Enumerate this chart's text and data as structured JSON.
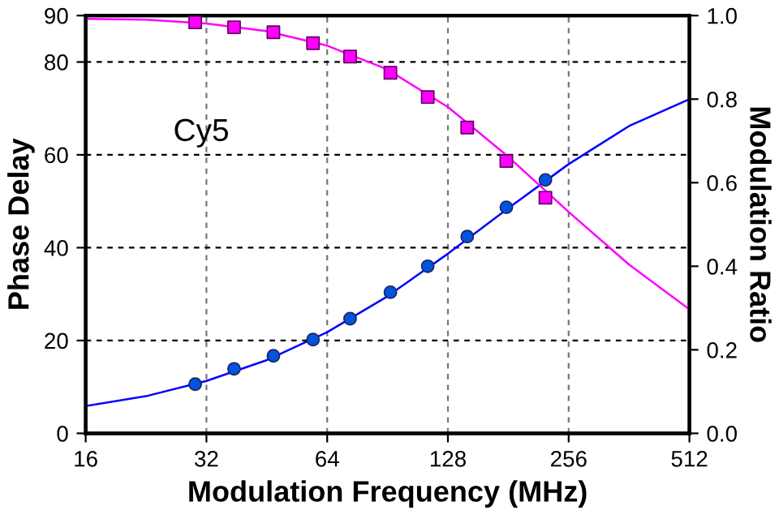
{
  "chart_data": {
    "type": "scatter",
    "xlabel": "Modulation Frequency (MHz)",
    "ylabel": "Phase Delay",
    "y2label": "Modulation Ratio",
    "annotations": [
      "Cy5"
    ],
    "log": "x",
    "grid": true,
    "xlim": [
      16,
      512
    ],
    "xticks": [
      16,
      32,
      64,
      128,
      256,
      512
    ],
    "ylim": [
      0,
      90
    ],
    "yticks": [
      0,
      20,
      40,
      60,
      80,
      90
    ],
    "y2lim": [
      0,
      1
    ],
    "y2ticks": [
      {
        "value": 0,
        "label": "0.0"
      },
      {
        "value": 0.2,
        "label": "0.2"
      },
      {
        "value": 0.4,
        "label": "0.4"
      },
      {
        "value": 0.6,
        "label": "0.6"
      },
      {
        "value": 0.8,
        "label": "0.8"
      },
      {
        "value": 1,
        "label": "1.0"
      }
    ],
    "series": [
      {
        "type": "line",
        "color": "#0000ff",
        "marker": "none",
        "line_style": "solid",
        "x": [
          16,
          22.6,
          32,
          45,
          64,
          90,
          128,
          181,
          256,
          362,
          512
        ],
        "values": [
          5.9,
          8.0,
          11.3,
          15.7,
          21.8,
          29.4,
          38.7,
          48.5,
          58.0,
          66.2,
          72.0
        ]
      },
      {
        "type": "line",
        "axis": "y2",
        "color": "#ff00ff",
        "marker": "none",
        "line_style": "solid",
        "x": [
          16,
          22.6,
          32,
          45,
          64,
          90,
          128,
          181,
          256,
          362,
          512
        ],
        "values": [
          0.992,
          0.99,
          0.981,
          0.963,
          0.928,
          0.872,
          0.781,
          0.662,
          0.53,
          0.404,
          0.297
        ]
      },
      {
        "color": "#0055dd",
        "marker": "circle",
        "x": [
          30,
          37.5,
          47,
          59,
          73,
          92,
          114,
          143,
          179,
          224
        ],
        "values": [
          10.6,
          13.9,
          16.7,
          20.2,
          24.7,
          30.4,
          36.0,
          42.4,
          48.7,
          54.6
        ]
      },
      {
        "axis": "y2",
        "color": "#ff00ff",
        "marker": "square",
        "x": [
          30,
          37.5,
          47,
          59,
          73,
          92,
          114,
          143,
          179,
          224
        ],
        "values": [
          0.984,
          0.972,
          0.96,
          0.934,
          0.902,
          0.863,
          0.805,
          0.732,
          0.652,
          0.564
        ]
      }
    ]
  }
}
